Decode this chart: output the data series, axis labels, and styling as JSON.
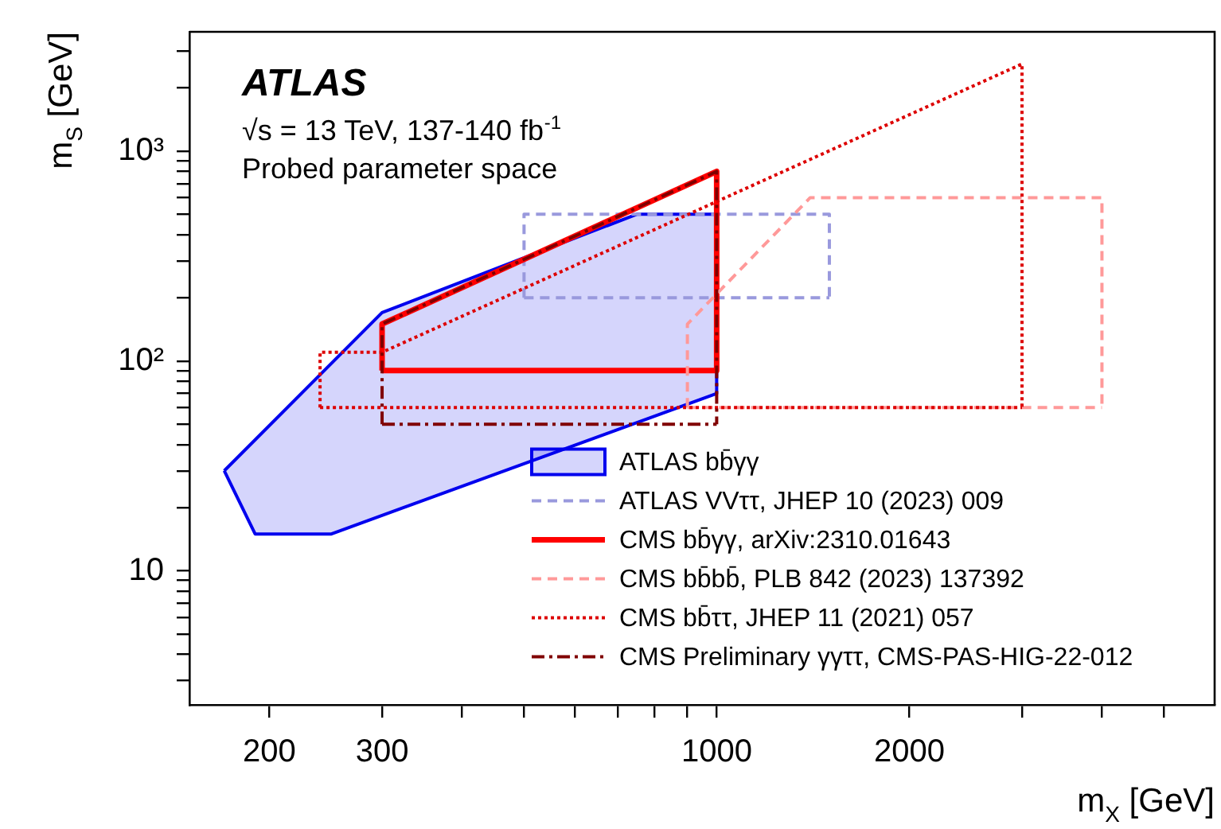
{
  "chart_data": {
    "type": "line",
    "title": "ATLAS",
    "subtitle": "√s = 13 TeV, 137-140 fb$^{-1}$",
    "annotations": [
      "Probed parameter space"
    ],
    "xlabel": "m$_{X}$ [GeV]",
    "ylabel": "m$_{S}$ [GeV]",
    "log": "xy",
    "grid": false,
    "legend": "bottom",
    "marker": "none",
    "xlim": [
      150,
      6000
    ],
    "ylim": [
      2.3,
      3700
    ],
    "xticks": [
      200,
      300,
      {
        "value": 400,
        "label": null
      },
      {
        "value": 500,
        "label": null
      },
      {
        "value": 600,
        "label": null
      },
      {
        "value": 700,
        "label": null
      },
      {
        "value": 800,
        "label": null
      },
      {
        "value": 900,
        "label": null
      },
      1000,
      2000,
      {
        "value": 3000,
        "label": null
      },
      {
        "value": 4000,
        "label": null
      },
      {
        "value": 5000,
        "label": null
      }
    ],
    "yticks": [
      {
        "value": 3,
        "label": null
      },
      {
        "value": 4,
        "label": null
      },
      {
        "value": 5,
        "label": null
      },
      {
        "value": 6,
        "label": null
      },
      {
        "value": 7,
        "label": null
      },
      {
        "value": 8,
        "label": null
      },
      {
        "value": 9,
        "label": null
      },
      10,
      {
        "value": 20,
        "label": null
      },
      {
        "value": 30,
        "label": null
      },
      {
        "value": 40,
        "label": null
      },
      {
        "value": 50,
        "label": null
      },
      {
        "value": 60,
        "label": null
      },
      {
        "value": 70,
        "label": null
      },
      {
        "value": 80,
        "label": null
      },
      {
        "value": 90,
        "label": null
      },
      {
        "value": 100,
        "label": "10²"
      },
      {
        "value": 200,
        "label": null
      },
      {
        "value": 300,
        "label": null
      },
      {
        "value": 400,
        "label": null
      },
      {
        "value": 500,
        "label": null
      },
      {
        "value": 600,
        "label": null
      },
      {
        "value": 700,
        "label": null
      },
      {
        "value": 800,
        "label": null
      },
      {
        "value": 900,
        "label": null
      },
      {
        "value": 1000,
        "label": "10³"
      },
      {
        "value": 2000,
        "label": null
      },
      {
        "value": 3000,
        "label": null
      }
    ],
    "series": [
      {
        "name": "ATLAS bb̄γγ",
        "type": "area",
        "color": "#0000ee",
        "line_style": "solid",
        "x": [
          170,
          190,
          250,
          1000,
          1000,
          750,
          300,
          170
        ],
        "values": [
          30,
          15,
          15,
          70,
          500,
          500,
          170,
          30
        ]
      },
      {
        "name": "ATLAS VVττ, JHEP 10 (2023) 009",
        "color": "#9999dd",
        "line_style": "dashed",
        "x": [
          500,
          500,
          1500,
          1500
        ],
        "values": [
          200,
          500,
          500,
          200
        ]
      },
      {
        "color": "#9999dd",
        "line_style": "dashed",
        "x": [
          500,
          1500
        ],
        "values": [
          200,
          200
        ]
      },
      {
        "name": "CMS bb̄γγ, arXiv:2310.01643",
        "color": "#ff0000",
        "line_style": "solid",
        "x": [
          300,
          300,
          1000,
          1000
        ],
        "values": [
          90,
          150,
          800,
          90
        ]
      },
      {
        "color": "#ff0000",
        "line_style": "solid",
        "x": [
          300,
          1000
        ],
        "values": [
          90,
          90
        ]
      },
      {
        "name": "CMS bb̄bb̄, PLB 842 (2023) 137392",
        "color": "#ff9999",
        "line_style": "dashed",
        "x": [
          900,
          900,
          1400,
          4000,
          4000
        ],
        "values": [
          60,
          150,
          600,
          600,
          60
        ]
      },
      {
        "color": "#ff9999",
        "line_style": "dashed",
        "x": [
          900,
          4000
        ],
        "values": [
          60,
          60
        ]
      },
      {
        "name": "CMS bb̄ττ, JHEP 11 (2021) 057",
        "color": "#dd0000",
        "line_style": "dotted",
        "x": [
          240,
          240,
          300,
          3000,
          3000
        ],
        "values": [
          60,
          110,
          110,
          2600,
          60
        ]
      },
      {
        "color": "#dd0000",
        "line_style": "dotted",
        "x": [
          240,
          3000
        ],
        "values": [
          60,
          60
        ]
      },
      {
        "name": "CMS Preliminary γγττ, CMS-PAS-HIG-22-012",
        "color": "#800000",
        "line_style": "dashdot",
        "x": [
          300,
          300,
          1000,
          1000
        ],
        "values": [
          50,
          150,
          800,
          50
        ]
      },
      {
        "color": "#800000",
        "line_style": "dashdot",
        "x": [
          300,
          1000
        ],
        "values": [
          50,
          50
        ]
      }
    ]
  }
}
